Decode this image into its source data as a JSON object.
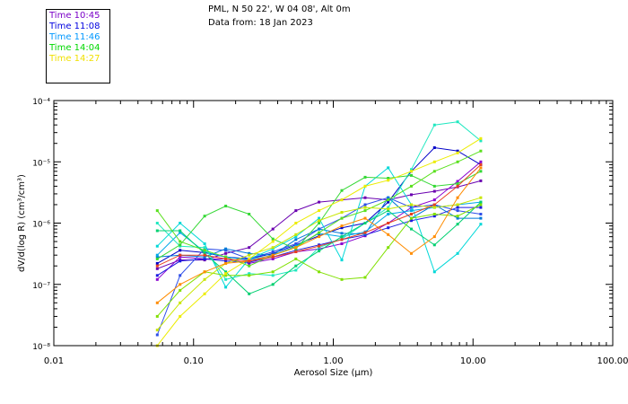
{
  "header": {
    "station": "PML, N 50 22', W 04 08', Alt 0m",
    "date": "Data from: 18 Jan 2023"
  },
  "chart_data": {
    "type": "line",
    "xlabel": "Aerosol Size (μm)",
    "ylabel": "dV/d(log R) (cm³/cm³)",
    "xscale": "log",
    "yscale": "log",
    "xlim": [
      0.01,
      100
    ],
    "ylim": [
      1e-08,
      0.0001
    ],
    "x_tick_labels": [
      "0.01",
      "0.10",
      "1.00",
      "10.00",
      "100.00"
    ],
    "y_tick_labels": [
      "10⁻⁸",
      "10⁻⁷",
      "10⁻⁶",
      "10⁻⁵",
      "10⁻⁴"
    ],
    "legend_placement": "top-left, outside plot",
    "grid": false,
    "x": [
      0.055,
      0.08,
      0.12,
      0.17,
      0.25,
      0.37,
      0.54,
      0.79,
      1.15,
      1.69,
      2.47,
      3.62,
      5.3,
      7.76,
      11.37
    ],
    "series": [
      {
        "name": "Time 10:45",
        "color": "#6a00b0",
        "values": [
          1.8e-07,
          2.5e-07,
          2.5e-07,
          3.2e-07,
          4e-07,
          8e-07,
          1.6e-06,
          2.2e-06,
          2.4e-06,
          2.6e-06,
          2.4e-06,
          2.9e-06,
          3.3e-06,
          3.9e-06,
          4.9e-06
        ]
      },
      {
        "name": "Time 10:45",
        "color": "#8a00d0",
        "values": [
          1.2e-07,
          2.8e-07,
          2.6e-07,
          2.6e-07,
          2.2e-07,
          2.6e-07,
          3.4e-07,
          3.8e-07,
          4.6e-07,
          6.2e-07,
          1e-06,
          1.8e-06,
          2.4e-06,
          4.8e-06,
          1e-05
        ]
      },
      {
        "name": "Time 11:08",
        "color": "#0000c8",
        "values": [
          2.2e-07,
          3.6e-07,
          3.3e-07,
          2.8e-07,
          2.6e-07,
          3.2e-07,
          4.4e-07,
          6.2e-07,
          8.4e-07,
          1e-06,
          2.2e-06,
          7e-06,
          1.7e-05,
          1.5e-05,
          9e-06
        ]
      },
      {
        "name": "Time 11:08",
        "color": "#1a1ae0",
        "values": [
          1.4e-07,
          2.4e-07,
          2.6e-07,
          2.4e-07,
          2.3e-07,
          2.8e-07,
          3.6e-07,
          4.4e-07,
          5.4e-07,
          6.4e-07,
          8.4e-07,
          1.1e-06,
          1.3e-06,
          1.8e-06,
          1.8e-06
        ]
      },
      {
        "name": "Time 11:08",
        "color": "#2e4ee8",
        "values": [
          1.5e-08,
          1.4e-07,
          3.8e-07,
          3.6e-07,
          2.6e-07,
          3.4e-07,
          4.6e-07,
          8e-07,
          1.2e-06,
          2e-06,
          2.6e-06,
          1.8e-06,
          2e-06,
          1.6e-06,
          1.4e-06
        ]
      },
      {
        "name": "Time 11:46",
        "color": "#0078d8",
        "values": [
          2.8e-07,
          3e-07,
          2.8e-07,
          3.8e-07,
          3.2e-07,
          3e-07,
          5.4e-07,
          8e-07,
          6.8e-07,
          6.6e-07,
          2.6e-06,
          1.2e-06,
          2e-06,
          1.2e-06,
          1.2e-06
        ]
      },
      {
        "name": "Time 11:46",
        "color": "#00a8e8",
        "values": [
          3e-07,
          7e-07,
          3.4e-07,
          2.8e-07,
          2.5e-07,
          3e-07,
          4.2e-07,
          6.8e-07,
          6e-07,
          7.2e-07,
          1.4e-06,
          1.6e-06,
          1.8e-06,
          2e-06,
          2.2e-06
        ]
      },
      {
        "name": "Time 11:46",
        "color": "#00d8d8",
        "values": [
          4.2e-07,
          1e-06,
          4.6e-07,
          9e-08,
          2.6e-07,
          3.8e-07,
          6e-07,
          1.2e-06,
          2.5e-07,
          4e-06,
          8e-06,
          2e-06,
          1.6e-07,
          3.2e-07,
          9.6e-07
        ]
      },
      {
        "name": "Time 11:46",
        "color": "#20e8c0",
        "values": [
          1e-06,
          4.2e-07,
          4e-07,
          1.2e-07,
          1.5e-07,
          1.4e-07,
          1.7e-07,
          4e-07,
          5.5e-07,
          1e-06,
          1.8e-06,
          7.5e-06,
          4e-05,
          4.5e-05,
          2.2e-05
        ]
      },
      {
        "name": "Time 14:04",
        "color": "#00d070",
        "values": [
          7.5e-07,
          7.5e-07,
          3.2e-07,
          1.6e-07,
          7e-08,
          1e-07,
          2e-07,
          3.5e-07,
          6e-07,
          1e-06,
          1.6e-06,
          8e-07,
          4.4e-07,
          9.6e-07,
          2.2e-06
        ]
      },
      {
        "name": "Time 14:04",
        "color": "#34d834",
        "values": [
          2.6e-07,
          4.4e-07,
          1.3e-06,
          1.9e-06,
          1.4e-06,
          5.5e-07,
          3.8e-07,
          1e-06,
          3.4e-06,
          5.6e-06,
          5.4e-06,
          6e-06,
          4e-06,
          4.4e-06,
          7e-06
        ]
      },
      {
        "name": "Time 14:04",
        "color": "#5ae01e",
        "values": [
          1.6e-06,
          5e-07,
          3.6e-07,
          2.8e-07,
          2e-07,
          3e-07,
          4e-07,
          7e-07,
          1.2e-06,
          1.6e-06,
          2.4e-06,
          4e-06,
          7e-06,
          1e-05,
          1.5e-05
        ]
      },
      {
        "name": "Time 14:04",
        "color": "#80e000",
        "values": [
          3e-08,
          8e-08,
          1.6e-07,
          1.4e-07,
          1.4e-07,
          1.6e-07,
          2.6e-07,
          1.6e-07,
          1.2e-07,
          1.3e-07,
          4e-07,
          1.2e-06,
          1.4e-06,
          1.3e-06,
          2e-06
        ]
      },
      {
        "name": "Time 14:27",
        "color": "#c8e600",
        "values": [
          1.8e-08,
          5e-08,
          1.2e-07,
          2.2e-07,
          3e-07,
          4e-07,
          6.5e-07,
          1.1e-06,
          1.5e-06,
          1.8e-06,
          1.7e-06,
          2e-06,
          1.8e-06,
          2e-06,
          2.6e-06
        ]
      },
      {
        "name": "Time 14:27",
        "color": "#ecec00",
        "values": [
          1e-08,
          3e-08,
          7e-08,
          1.5e-07,
          2.6e-07,
          5e-07,
          1e-06,
          1.6e-06,
          2.4e-06,
          4e-06,
          5e-06,
          7e-06,
          1e-05,
          1.4e-05,
          2.4e-05
        ]
      },
      {
        "name": "Time 14:27",
        "color": "#ff8c00",
        "values": [
          5e-08,
          1e-07,
          1.6e-07,
          2.2e-07,
          2.4e-07,
          3e-07,
          4e-07,
          6e-07,
          9e-07,
          1.2e-06,
          6.5e-07,
          3.2e-07,
          6e-07,
          2.6e-06,
          8e-06
        ]
      },
      {
        "name": "Time 14:27",
        "color": "#e84020",
        "values": [
          2e-07,
          3e-07,
          3e-07,
          2.6e-07,
          2.4e-07,
          2.8e-07,
          3.4e-07,
          4.2e-07,
          5.4e-07,
          7e-07,
          1e-06,
          1.4e-06,
          2e-06,
          4e-06,
          9e-06
        ]
      }
    ]
  },
  "legend": {
    "items": [
      {
        "label": "Time 10:45",
        "color": "#7b00c8"
      },
      {
        "label": "Time 11:08",
        "color": "#0000e0"
      },
      {
        "label": "Time 11:46",
        "color": "#0098ff"
      },
      {
        "label": "Time 14:04",
        "color": "#00d800"
      },
      {
        "label": "Time 14:27",
        "color": "#f0e000"
      }
    ]
  }
}
